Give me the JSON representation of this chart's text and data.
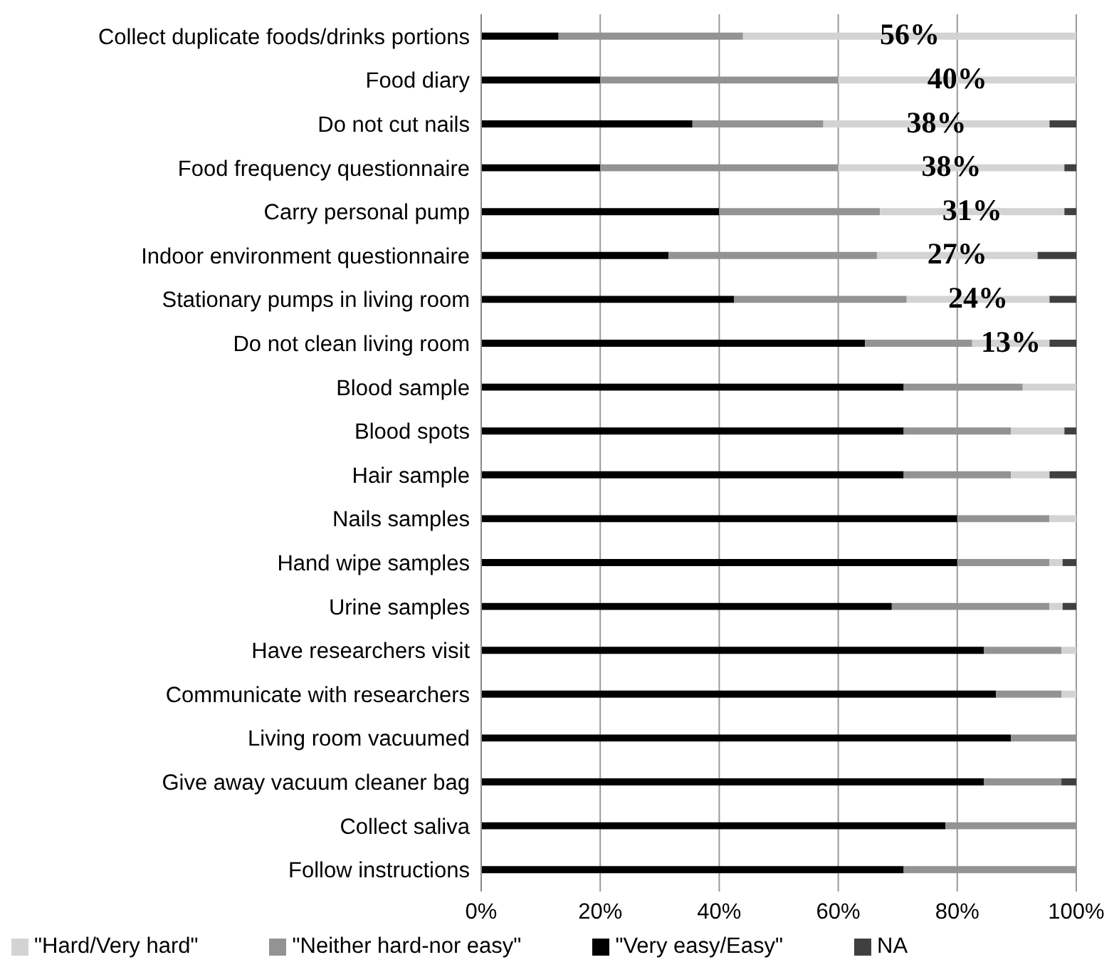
{
  "chart_data": {
    "type": "bar",
    "orientation": "horizontal",
    "stacked": true,
    "grid": "x",
    "legend": "bottom",
    "categories": [
      "Collect duplicate foods/drinks portions",
      "Food diary",
      "Do not cut nails",
      "Food frequency questionnaire",
      "Carry personal pump",
      "Indoor environment questionnaire",
      "Stationary pumps in living room",
      "Do not clean living room",
      "Blood sample",
      "Blood spots",
      "Hair sample",
      "Nails samples",
      "Hand wipe samples",
      "Urine samples",
      "Have researchers visit",
      "Communicate with researchers",
      "Living room vacuumed",
      "Give away vacuum cleaner bag",
      "Collect saliva",
      "Follow instructions"
    ],
    "xlim": [
      0,
      100
    ],
    "xticks": [
      {
        "value": 0,
        "label": "0%"
      },
      {
        "value": 20,
        "label": "20%"
      },
      {
        "value": 40,
        "label": "40%"
      },
      {
        "value": 60,
        "label": "60%"
      },
      {
        "value": 80,
        "label": "80%"
      },
      {
        "value": 100,
        "label": "100%"
      }
    ],
    "series": [
      {
        "name": "\"Very easy/Easy\"",
        "color": "#000000",
        "values": [
          13,
          20,
          35.5,
          20,
          40,
          31.5,
          42.5,
          64.5,
          71,
          71,
          71,
          80,
          80,
          69,
          84.5,
          86.5,
          89,
          84.5,
          78,
          71
        ]
      },
      {
        "name": "\"Neither hard-nor easy\"",
        "color": "#939393",
        "values": [
          31,
          40,
          22,
          40,
          27,
          35,
          29,
          18,
          20,
          18,
          18,
          15.5,
          15.5,
          26.5,
          13,
          11,
          11,
          13,
          22,
          29
        ]
      },
      {
        "name": "\"Hard/Very hard\"",
        "color": "#d3d3d3",
        "values": [
          56,
          40,
          38,
          38,
          31,
          27,
          24,
          13,
          9,
          9,
          6.5,
          4.5,
          2.2,
          2.2,
          2.5,
          2.5,
          null,
          null,
          null,
          null
        ],
        "value_labels": [
          "56%",
          "40%",
          "38%",
          "38%",
          "31%",
          "27%",
          "24%",
          "13%",
          null,
          null,
          null,
          null,
          null,
          null,
          null,
          null,
          null,
          null,
          null,
          null
        ]
      },
      {
        "name": "NA",
        "color": "#404040",
        "values": [
          null,
          null,
          4.5,
          2,
          2,
          6.5,
          4.5,
          4.5,
          null,
          2,
          4.5,
          null,
          2.3,
          2.3,
          null,
          null,
          null,
          2.5,
          null,
          null
        ]
      }
    ]
  }
}
